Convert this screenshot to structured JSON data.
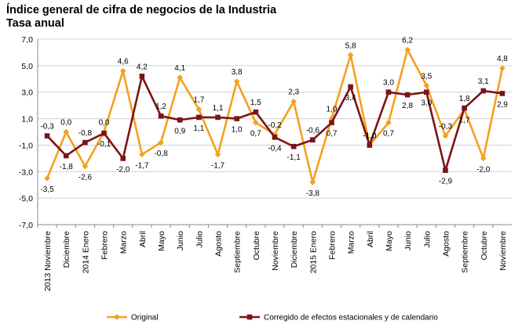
{
  "header": {
    "title": "Índice general de cifra de negocios de la Industria",
    "subtitle": "Tasa anual"
  },
  "colors": {
    "original": "#f5a01e",
    "corregido": "#7b1416",
    "grid": "#d0d0d0"
  },
  "chart_data": {
    "type": "line",
    "title": "Índice general de cifra de negocios de la Industria",
    "subtitle": "Tasa anual",
    "ylim": [
      -7,
      7
    ],
    "yticks": [
      "7,0",
      "5,0",
      "3,0",
      "1,0",
      "-1,0",
      "-3,0",
      "-5,0",
      "-7,0"
    ],
    "grid": true,
    "legend_position": "bottom",
    "categories": [
      "2013 Noviembre",
      "Diciembre",
      "2014 Enero",
      "Febrero",
      "Marzo",
      "Abril",
      "Mayo",
      "Junio",
      "Julio",
      "Agosto",
      "Septiembre",
      "Octubre",
      "Noviembre",
      "Diciembre",
      "2015 Enero",
      "Febrero",
      "Marzo",
      "Abril",
      "Mayo",
      "Junio",
      "Julio",
      "Agosto",
      "Septiembre",
      "Octubre",
      "Noviembre"
    ],
    "series": [
      {
        "name": "Original",
        "values": [
          -3.5,
          0.0,
          -2.6,
          0.0,
          4.6,
          -1.7,
          -0.8,
          4.1,
          1.7,
          -1.7,
          3.8,
          0.7,
          -0.2,
          2.3,
          -3.8,
          1.0,
          5.8,
          -1.0,
          0.7,
          6.2,
          3.5,
          -0.3,
          1.7,
          -2.0,
          4.8
        ],
        "labels": [
          "-3,5",
          "0,0",
          "-2,6",
          "0,0",
          "4,6",
          "-1,7",
          "-0,8",
          "4,1",
          "1,7",
          "-1,7",
          "3,8",
          "0,7",
          "-0,2",
          "2,3",
          "-3,8",
          "1,0",
          "5,8",
          "-1,0",
          "0,7",
          "6,2",
          "3,5",
          "-0,3",
          "1,7",
          "-2,0",
          "4,8"
        ]
      },
      {
        "name": "Corregido de efectos estacionales y de calendario",
        "values": [
          -0.3,
          -1.8,
          -0.8,
          -0.1,
          -2.0,
          4.2,
          1.2,
          0.9,
          1.1,
          1.1,
          1.0,
          1.5,
          -0.4,
          -1.1,
          -0.6,
          0.7,
          3.4,
          -1.0,
          3.0,
          2.8,
          3.0,
          -2.9,
          1.8,
          3.1,
          2.9
        ],
        "labels": [
          "-0,3",
          "-1,8",
          "-0,8",
          "-0,1",
          "-2,0",
          "4,2",
          "1,2",
          "0,9",
          "1,1",
          "1,1",
          "1,0",
          "1,5",
          "-0,4",
          "-1,1",
          "-0,6",
          "0,7",
          "3,4",
          "-1,0",
          "3,0",
          "2,8",
          "3,0",
          "-2,9",
          "1,8",
          "3,1",
          "2,9"
        ]
      }
    ]
  }
}
